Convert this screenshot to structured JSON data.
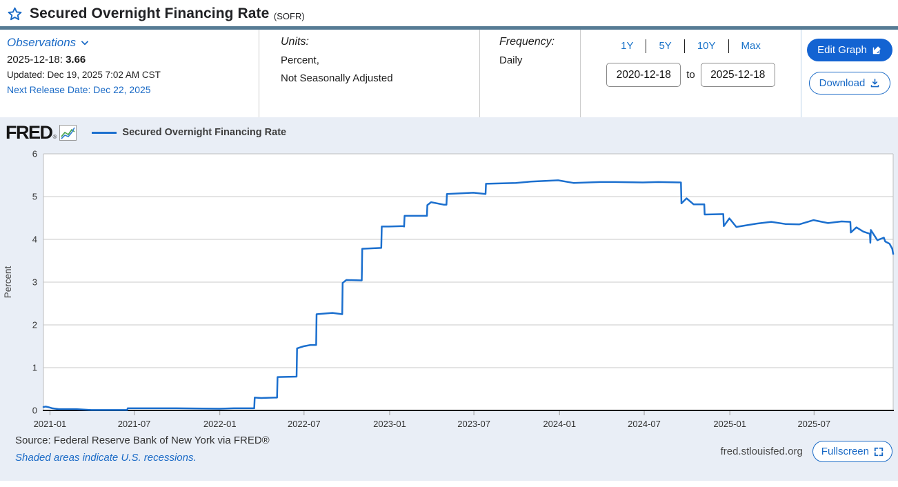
{
  "header": {
    "title": "Secured Overnight Financing Rate",
    "title_suffix": "(SOFR)"
  },
  "meta": {
    "observations": {
      "label": "Observations",
      "latest_date": "2025-12-18:",
      "latest_value": "3.66",
      "updated": "Updated: Dec 19, 2025 7:02 AM CST",
      "next_release": "Next Release Date: Dec 22, 2025"
    },
    "units": {
      "label": "Units:",
      "line1": "Percent,",
      "line2": "Not Seasonally Adjusted"
    },
    "frequency": {
      "label": "Frequency:",
      "value": "Daily"
    },
    "range": {
      "presets": [
        "1Y",
        "5Y",
        "10Y",
        "Max"
      ],
      "start_date": "2020-12-18",
      "to_label": "to",
      "end_date": "2025-12-18"
    },
    "actions": {
      "edit_graph": "Edit Graph",
      "download": "Download"
    }
  },
  "chart": {
    "logo": "FRED",
    "logo_reg": "®",
    "legend_label": "Secured Overnight Financing Rate",
    "source": "Source: Federal Reserve Bank of New York via FRED®",
    "recession_note": "Shaded areas indicate U.S. recessions.",
    "site": "fred.stlouisfed.org",
    "fullscreen": "Fullscreen"
  },
  "chart_data": {
    "type": "line",
    "title": "Secured Overnight Financing Rate",
    "ylabel": "Percent",
    "ylim": [
      0,
      6
    ],
    "yticks": [
      0,
      1,
      2,
      3,
      4,
      5,
      6
    ],
    "xlim": [
      "2020-12-18",
      "2025-12-18"
    ],
    "xticks": [
      "2021-01",
      "2021-07",
      "2022-01",
      "2022-07",
      "2023-01",
      "2023-07",
      "2024-01",
      "2024-07",
      "2025-01",
      "2025-07"
    ],
    "grid": true,
    "legend_position": "top-left",
    "series": [
      {
        "name": "Secured Overnight Financing Rate",
        "color": "#1b6fce",
        "points": [
          [
            "2020-12-18",
            0.08
          ],
          [
            "2020-12-23",
            0.09
          ],
          [
            "2020-12-31",
            0.07
          ],
          [
            "2021-01-06",
            0.05
          ],
          [
            "2021-01-20",
            0.03
          ],
          [
            "2021-02-26",
            0.03
          ],
          [
            "2021-03-31",
            0.01
          ],
          [
            "2021-04-30",
            0.01
          ],
          [
            "2021-06-16",
            0.01
          ],
          [
            "2021-06-17",
            0.05
          ],
          [
            "2021-09-30",
            0.05
          ],
          [
            "2021-12-31",
            0.04
          ],
          [
            "2022-01-31",
            0.05
          ],
          [
            "2022-03-16",
            0.05
          ],
          [
            "2022-03-17",
            0.3
          ],
          [
            "2022-03-31",
            0.29
          ],
          [
            "2022-04-29",
            0.3
          ],
          [
            "2022-05-04",
            0.3
          ],
          [
            "2022-05-05",
            0.78
          ],
          [
            "2022-06-15",
            0.79
          ],
          [
            "2022-06-16",
            1.45
          ],
          [
            "2022-06-30",
            1.5
          ],
          [
            "2022-07-15",
            1.53
          ],
          [
            "2022-07-27",
            1.53
          ],
          [
            "2022-07-28",
            2.25
          ],
          [
            "2022-08-31",
            2.28
          ],
          [
            "2022-09-21",
            2.25
          ],
          [
            "2022-09-22",
            2.98
          ],
          [
            "2022-09-30",
            3.05
          ],
          [
            "2022-11-02",
            3.04
          ],
          [
            "2022-11-03",
            3.78
          ],
          [
            "2022-12-14",
            3.8
          ],
          [
            "2022-12-15",
            4.3
          ],
          [
            "2022-12-30",
            4.3
          ],
          [
            "2023-01-31",
            4.31
          ],
          [
            "2023-02-01",
            4.3
          ],
          [
            "2023-02-02",
            4.55
          ],
          [
            "2023-03-02",
            4.55
          ],
          [
            "2023-03-22",
            4.55
          ],
          [
            "2023-03-23",
            4.8
          ],
          [
            "2023-03-31",
            4.87
          ],
          [
            "2023-04-28",
            4.81
          ],
          [
            "2023-05-03",
            4.81
          ],
          [
            "2023-05-04",
            5.06
          ],
          [
            "2023-06-30",
            5.09
          ],
          [
            "2023-07-26",
            5.06
          ],
          [
            "2023-07-27",
            5.3
          ],
          [
            "2023-09-29",
            5.32
          ],
          [
            "2023-10-31",
            5.35
          ],
          [
            "2023-12-29",
            5.38
          ],
          [
            "2024-01-31",
            5.32
          ],
          [
            "2024-03-28",
            5.34
          ],
          [
            "2024-04-30",
            5.34
          ],
          [
            "2024-06-28",
            5.33
          ],
          [
            "2024-07-31",
            5.34
          ],
          [
            "2024-09-18",
            5.33
          ],
          [
            "2024-09-19",
            4.84
          ],
          [
            "2024-09-30",
            4.96
          ],
          [
            "2024-10-15",
            4.82
          ],
          [
            "2024-11-07",
            4.82
          ],
          [
            "2024-11-08",
            4.58
          ],
          [
            "2024-12-18",
            4.59
          ],
          [
            "2024-12-19",
            4.31
          ],
          [
            "2024-12-31",
            4.49
          ],
          [
            "2025-01-15",
            4.29
          ],
          [
            "2025-02-28",
            4.37
          ],
          [
            "2025-03-31",
            4.41
          ],
          [
            "2025-04-30",
            4.36
          ],
          [
            "2025-05-30",
            4.35
          ],
          [
            "2025-06-30",
            4.45
          ],
          [
            "2025-07-31",
            4.38
          ],
          [
            "2025-08-29",
            4.42
          ],
          [
            "2025-09-17",
            4.41
          ],
          [
            "2025-09-18",
            4.16
          ],
          [
            "2025-09-30",
            4.28
          ],
          [
            "2025-10-15",
            4.18
          ],
          [
            "2025-10-29",
            4.13
          ],
          [
            "2025-10-30",
            3.92
          ],
          [
            "2025-10-31",
            4.22
          ],
          [
            "2025-11-14",
            3.98
          ],
          [
            "2025-11-28",
            4.04
          ],
          [
            "2025-12-01",
            3.95
          ],
          [
            "2025-12-10",
            3.9
          ],
          [
            "2025-12-16",
            3.78
          ],
          [
            "2025-12-18",
            3.66
          ]
        ]
      }
    ]
  }
}
